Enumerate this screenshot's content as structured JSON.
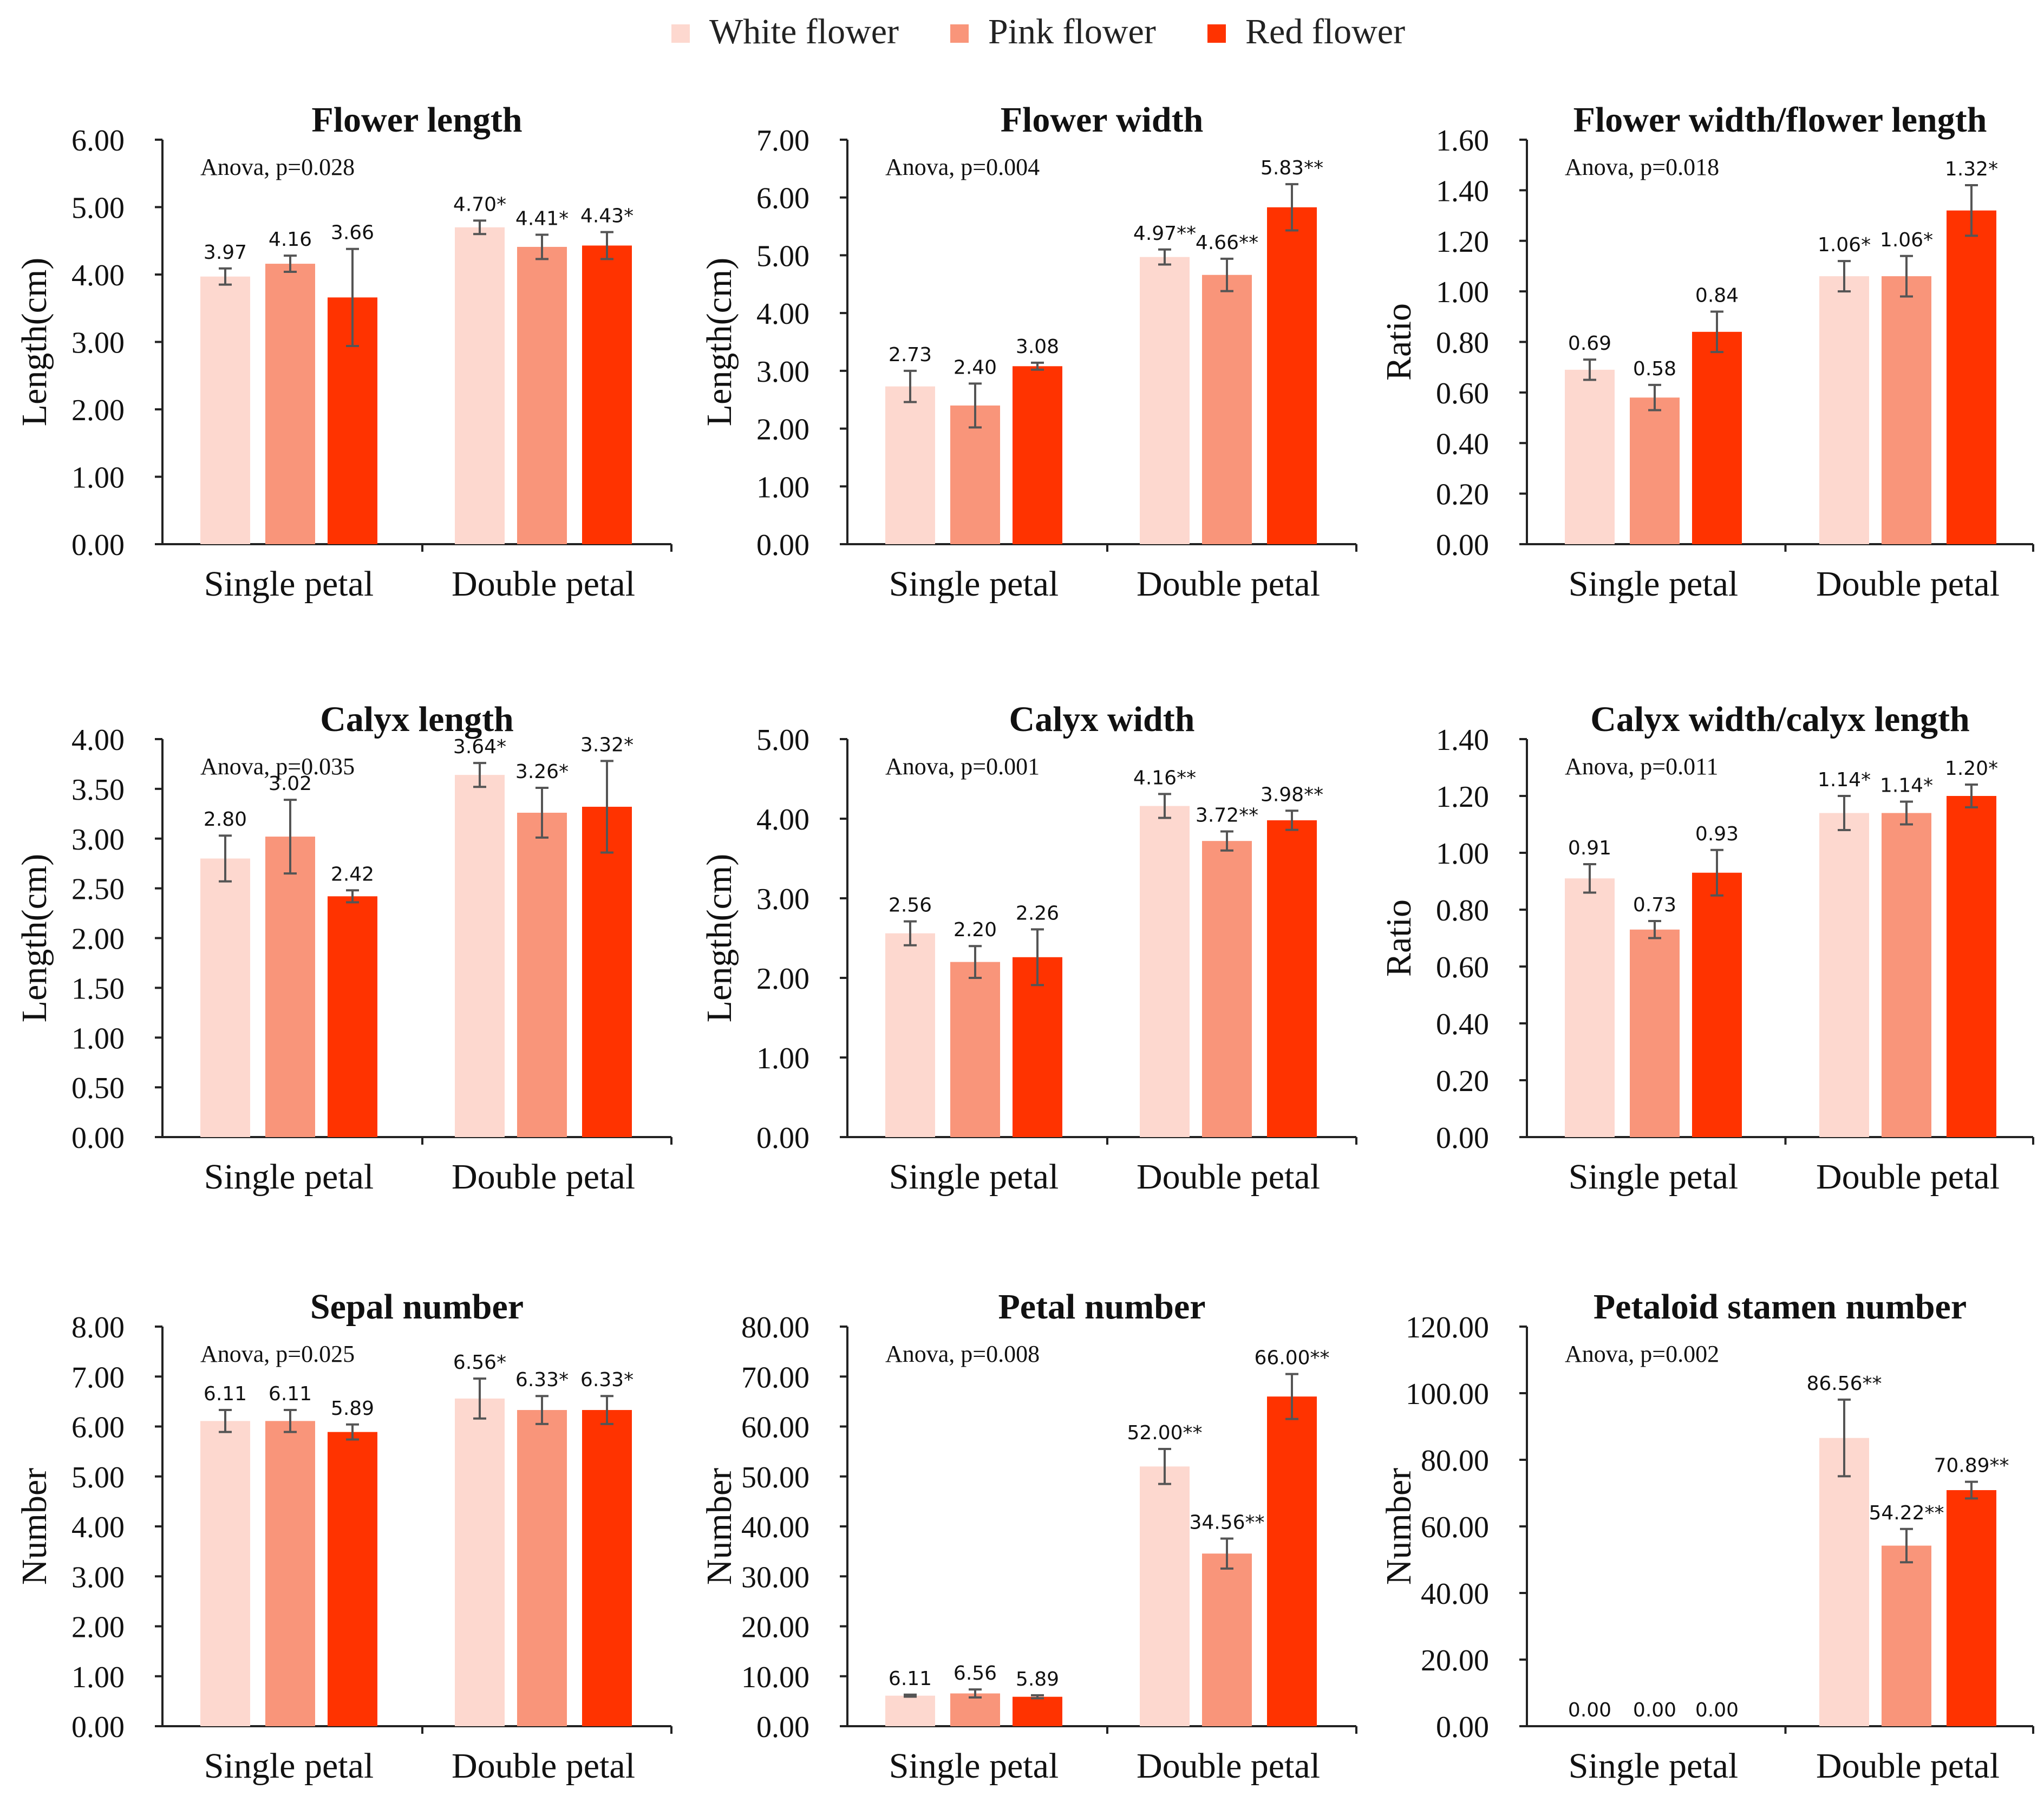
{
  "legend": [
    {
      "label": "White flower",
      "color": "#FDD8CF"
    },
    {
      "label": "Pink flower",
      "color": "#F9957A"
    },
    {
      "label": "Red flower",
      "color": "#FF3300"
    }
  ],
  "error_bar_color": "#555555",
  "axis_color": "#222222",
  "chart_data": [
    {
      "type": "bar",
      "title": "Flower length",
      "ylabel": "Length(cm)",
      "anova": "Anova, p=0.028",
      "categories": [
        "Single petal",
        "Double petal"
      ],
      "ylim": [
        0,
        6
      ],
      "ticks": [
        "0.00",
        "1.00",
        "2.00",
        "3.00",
        "4.00",
        "5.00",
        "6.00"
      ],
      "series": [
        {
          "name": "White flower",
          "values": [
            3.97,
            4.7
          ],
          "errors": [
            0.12,
            0.1
          ],
          "labels": [
            "3.97",
            "4.70*"
          ]
        },
        {
          "name": "Pink flower",
          "values": [
            4.16,
            4.41
          ],
          "errors": [
            0.12,
            0.18
          ],
          "labels": [
            "4.16",
            "4.41*"
          ]
        },
        {
          "name": "Red flower",
          "values": [
            3.66,
            4.43
          ],
          "errors": [
            0.72,
            0.2
          ],
          "labels": [
            "3.66",
            "4.43*"
          ]
        }
      ]
    },
    {
      "type": "bar",
      "title": "Flower width",
      "ylabel": "Length(cm)",
      "anova": "Anova, p=0.004",
      "categories": [
        "Single petal",
        "Double petal"
      ],
      "ylim": [
        0,
        7
      ],
      "ticks": [
        "0.00",
        "1.00",
        "2.00",
        "3.00",
        "4.00",
        "5.00",
        "6.00",
        "7.00"
      ],
      "series": [
        {
          "name": "White flower",
          "values": [
            2.73,
            4.97
          ],
          "errors": [
            0.27,
            0.13
          ],
          "labels": [
            "2.73",
            "4.97**"
          ]
        },
        {
          "name": "Pink flower",
          "values": [
            2.4,
            4.66
          ],
          "errors": [
            0.38,
            0.28
          ],
          "labels": [
            "2.40",
            "4.66**"
          ]
        },
        {
          "name": "Red flower",
          "values": [
            3.08,
            5.83
          ],
          "errors": [
            0.06,
            0.4
          ],
          "labels": [
            "3.08",
            "5.83**"
          ]
        }
      ]
    },
    {
      "type": "bar",
      "title": "Flower width/flower length",
      "ylabel": "Ratio",
      "anova": "Anova, p=0.018",
      "categories": [
        "Single petal",
        "Double petal"
      ],
      "ylim": [
        0,
        1.6
      ],
      "ticks": [
        "0.00",
        "0.20",
        "0.40",
        "0.60",
        "0.80",
        "1.00",
        "1.20",
        "1.40",
        "1.60"
      ],
      "series": [
        {
          "name": "White flower",
          "values": [
            0.69,
            1.06
          ],
          "errors": [
            0.04,
            0.06
          ],
          "labels": [
            "0.69",
            "1.06*"
          ]
        },
        {
          "name": "Pink flower",
          "values": [
            0.58,
            1.06
          ],
          "errors": [
            0.05,
            0.08
          ],
          "labels": [
            "0.58",
            "1.06*"
          ]
        },
        {
          "name": "Red flower",
          "values": [
            0.84,
            1.32
          ],
          "errors": [
            0.08,
            0.1
          ],
          "labels": [
            "0.84",
            "1.32*"
          ]
        }
      ]
    },
    {
      "type": "bar",
      "title": "Calyx length",
      "ylabel": "Length(cm)",
      "anova": "Anova, p=0.035",
      "categories": [
        "Single petal",
        "Double petal"
      ],
      "ylim": [
        0,
        4
      ],
      "ticks": [
        "0.00",
        "0.50",
        "1.00",
        "1.50",
        "2.00",
        "2.50",
        "3.00",
        "3.50",
        "4.00"
      ],
      "series": [
        {
          "name": "White flower",
          "values": [
            2.8,
            3.64
          ],
          "errors": [
            0.23,
            0.12
          ],
          "labels": [
            "2.80",
            "3.64*"
          ]
        },
        {
          "name": "Pink flower",
          "values": [
            3.02,
            3.26
          ],
          "errors": [
            0.37,
            0.25
          ],
          "labels": [
            "3.02",
            "3.26*"
          ]
        },
        {
          "name": "Red flower",
          "values": [
            2.42,
            3.32
          ],
          "errors": [
            0.06,
            0.46
          ],
          "labels": [
            "2.42",
            "3.32*"
          ]
        }
      ]
    },
    {
      "type": "bar",
      "title": "Calyx width",
      "ylabel": "Length(cm)",
      "anova": "Anova, p=0.001",
      "categories": [
        "Single petal",
        "Double petal"
      ],
      "ylim": [
        0,
        5
      ],
      "ticks": [
        "0.00",
        "1.00",
        "2.00",
        "3.00",
        "4.00",
        "5.00"
      ],
      "series": [
        {
          "name": "White flower",
          "values": [
            2.56,
            4.16
          ],
          "errors": [
            0.15,
            0.15
          ],
          "labels": [
            "2.56",
            "4.16**"
          ]
        },
        {
          "name": "Pink flower",
          "values": [
            2.2,
            3.72
          ],
          "errors": [
            0.2,
            0.12
          ],
          "labels": [
            "2.20",
            "3.72**"
          ]
        },
        {
          "name": "Red flower",
          "values": [
            2.26,
            3.98
          ],
          "errors": [
            0.35,
            0.12
          ],
          "labels": [
            "2.26",
            "3.98**"
          ]
        }
      ]
    },
    {
      "type": "bar",
      "title": "Calyx width/calyx length",
      "ylabel": "Ratio",
      "anova": "Anova, p=0.011",
      "categories": [
        "Single petal",
        "Double petal"
      ],
      "ylim": [
        0,
        1.4
      ],
      "ticks": [
        "0.00",
        "0.20",
        "0.40",
        "0.60",
        "0.80",
        "1.00",
        "1.20",
        "1.40"
      ],
      "series": [
        {
          "name": "White flower",
          "values": [
            0.91,
            1.14
          ],
          "errors": [
            0.05,
            0.06
          ],
          "labels": [
            "0.91",
            "1.14*"
          ]
        },
        {
          "name": "Pink flower",
          "values": [
            0.73,
            1.14
          ],
          "errors": [
            0.03,
            0.04
          ],
          "labels": [
            "0.73",
            "1.14*"
          ]
        },
        {
          "name": "Red flower",
          "values": [
            0.93,
            1.2
          ],
          "errors": [
            0.08,
            0.04
          ],
          "labels": [
            "0.93",
            "1.20*"
          ]
        }
      ]
    },
    {
      "type": "bar",
      "title": "Sepal number",
      "ylabel": "Number",
      "anova": "Anova, p=0.025",
      "categories": [
        "Single petal",
        "Double petal"
      ],
      "ylim": [
        0,
        8
      ],
      "ticks": [
        "0.00",
        "1.00",
        "2.00",
        "3.00",
        "4.00",
        "5.00",
        "6.00",
        "7.00",
        "8.00"
      ],
      "series": [
        {
          "name": "White flower",
          "values": [
            6.11,
            6.56
          ],
          "errors": [
            0.22,
            0.4
          ],
          "labels": [
            "6.11",
            "6.56*"
          ]
        },
        {
          "name": "Pink flower",
          "values": [
            6.11,
            6.33
          ],
          "errors": [
            0.22,
            0.28
          ],
          "labels": [
            "6.11",
            "6.33*"
          ]
        },
        {
          "name": "Red flower",
          "values": [
            5.89,
            6.33
          ],
          "errors": [
            0.15,
            0.28
          ],
          "labels": [
            "5.89",
            "6.33*"
          ]
        }
      ]
    },
    {
      "type": "bar",
      "title": "Petal number",
      "ylabel": "Number",
      "anova": "Anova, p=0.008",
      "categories": [
        "Single petal",
        "Double petal"
      ],
      "ylim": [
        0,
        80
      ],
      "ticks": [
        "0.00",
        "10.00",
        "20.00",
        "30.00",
        "40.00",
        "50.00",
        "60.00",
        "70.00",
        "80.00"
      ],
      "series": [
        {
          "name": "White flower",
          "values": [
            6.11,
            52.0
          ],
          "errors": [
            0.2,
            3.5
          ],
          "labels": [
            "6.11",
            "52.00**"
          ]
        },
        {
          "name": "Pink flower",
          "values": [
            6.56,
            34.56
          ],
          "errors": [
            0.8,
            3.0
          ],
          "labels": [
            "6.56",
            "34.56**"
          ]
        },
        {
          "name": "Red flower",
          "values": [
            5.89,
            66.0
          ],
          "errors": [
            0.3,
            4.5
          ],
          "labels": [
            "5.89",
            "66.00**"
          ]
        }
      ]
    },
    {
      "type": "bar",
      "title": "Petaloid stamen number",
      "ylabel": "Number",
      "anova": "Anova, p=0.002",
      "categories": [
        "Single petal",
        "Double petal"
      ],
      "ylim": [
        0,
        120
      ],
      "ticks": [
        "0.00",
        "20.00",
        "40.00",
        "60.00",
        "80.00",
        "100.00",
        "120.00"
      ],
      "series": [
        {
          "name": "White flower",
          "values": [
            0.0,
            86.56
          ],
          "errors": [
            0,
            11.5
          ],
          "labels": [
            "0.00",
            "86.56**"
          ]
        },
        {
          "name": "Pink flower",
          "values": [
            0.0,
            54.22
          ],
          "errors": [
            0,
            5.0
          ],
          "labels": [
            "0.00",
            "54.22**"
          ]
        },
        {
          "name": "Red flower",
          "values": [
            0.0,
            70.89
          ],
          "errors": [
            0,
            2.5
          ],
          "labels": [
            "0.00",
            "70.89**"
          ]
        }
      ]
    }
  ]
}
